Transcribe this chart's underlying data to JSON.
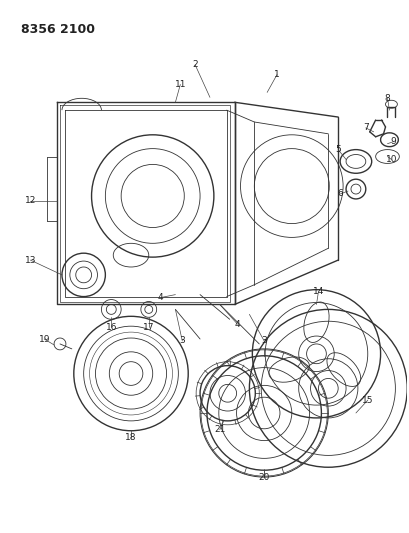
{
  "title": "8356 2100",
  "bg_color": "#ffffff",
  "line_color": "#333333",
  "title_fontsize": 9,
  "label_fontsize": 6.5,
  "fig_width": 4.1,
  "fig_height": 5.33,
  "dpi": 100
}
